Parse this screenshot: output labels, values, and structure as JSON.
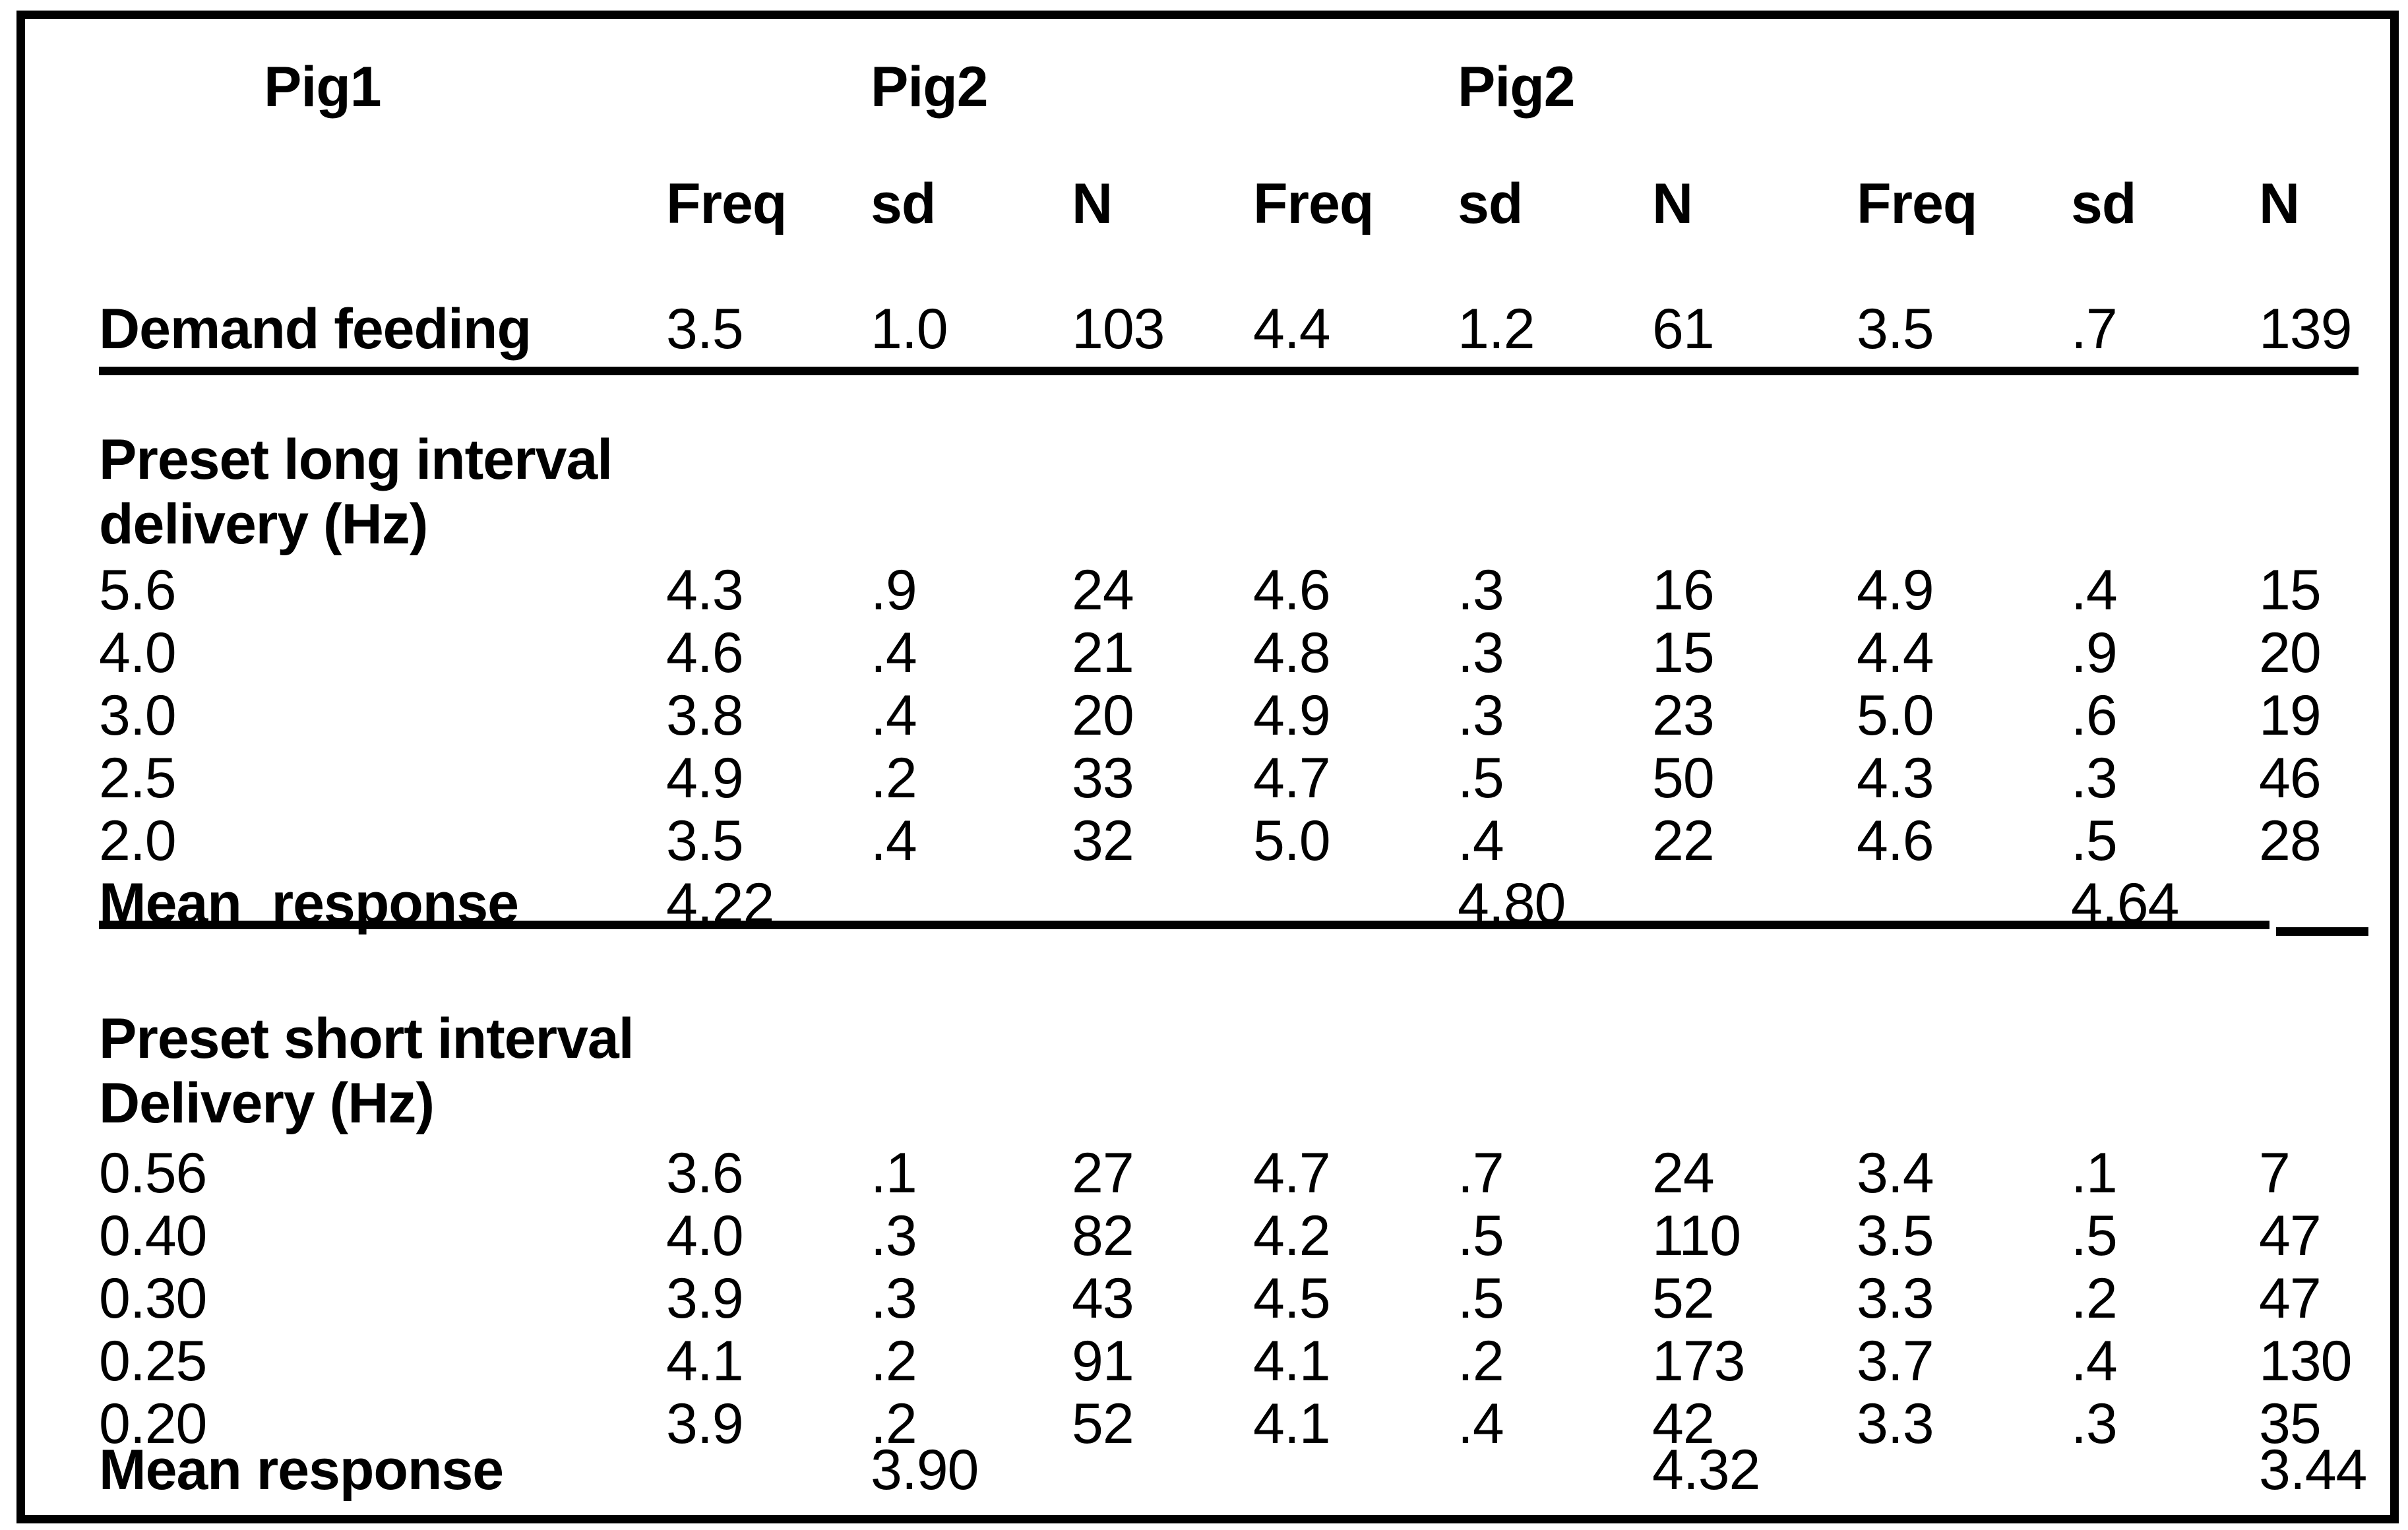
{
  "table": {
    "group_headers": [
      "Pig1",
      "Pig2",
      "Pig2"
    ],
    "col_headers": [
      "Freq",
      "sd",
      "N"
    ],
    "demand_row": {
      "label": "Demand feeding",
      "values": [
        "3.5",
        "1.0",
        "103",
        "4.4",
        "1.2",
        "61",
        "3.5",
        ".7",
        "139"
      ]
    },
    "long_section": {
      "title_line1": "Preset long interval",
      "title_line2": "delivery (Hz)",
      "rows": [
        {
          "label": "5.6",
          "values": [
            "4.3",
            ".9",
            "24",
            "4.6",
            ".3",
            "16",
            "4.9",
            ".4",
            "15"
          ]
        },
        {
          "label": "4.0",
          "values": [
            "4.6",
            ".4",
            "21",
            "4.8",
            ".3",
            "15",
            "4.4",
            ".9",
            "20"
          ]
        },
        {
          "label": "3.0",
          "values": [
            "3.8",
            ".4",
            "20",
            "4.9",
            ".3",
            "23",
            "5.0",
            ".6",
            "19"
          ]
        },
        {
          "label": "2.5",
          "values": [
            "4.9",
            ".2",
            "33",
            "4.7",
            ".5",
            "50",
            "4.3",
            ".3",
            "46"
          ]
        },
        {
          "label": "2.0",
          "values": [
            "3.5",
            ".4",
            "32",
            "5.0",
            ".4",
            "22",
            "4.6",
            ".5",
            "28"
          ]
        }
      ],
      "mean_row": {
        "label": "Mean  response",
        "pig1_mean": "4.22",
        "pig2a_mean": "4.80",
        "pig2b_mean": "4.64"
      }
    },
    "short_section": {
      "title_line1": "Preset short interval",
      "title_line2": "Delivery (Hz)",
      "rows": [
        {
          "label": "0.56",
          "values": [
            "3.6",
            ".1",
            "27",
            "4.7",
            ".7",
            "24",
            "3.4",
            ".1",
            "7"
          ]
        },
        {
          "label": "0.40",
          "values": [
            "4.0",
            ".3",
            "82",
            "4.2",
            ".5",
            "110",
            "3.5",
            ".5",
            "47"
          ]
        },
        {
          "label": "0.30",
          "values": [
            "3.9",
            ".3",
            "43",
            "4.5",
            ".5",
            "52",
            "3.3",
            ".2",
            "47"
          ]
        },
        {
          "label": "0.25",
          "values": [
            "4.1",
            ".2",
            "91",
            "4.1",
            ".2",
            "173",
            "3.7",
            ".4",
            "130"
          ]
        },
        {
          "label": "0.20",
          "values": [
            "3.9",
            ".2",
            "52",
            "4.1",
            ".4",
            "42",
            "3.3",
            ".3",
            "35"
          ]
        }
      ],
      "mean_row": {
        "label": "Mean response",
        "pig1_mean": "3.90",
        "pig2a_mean": "4.32",
        "pig2b_mean": "3.44"
      }
    }
  }
}
